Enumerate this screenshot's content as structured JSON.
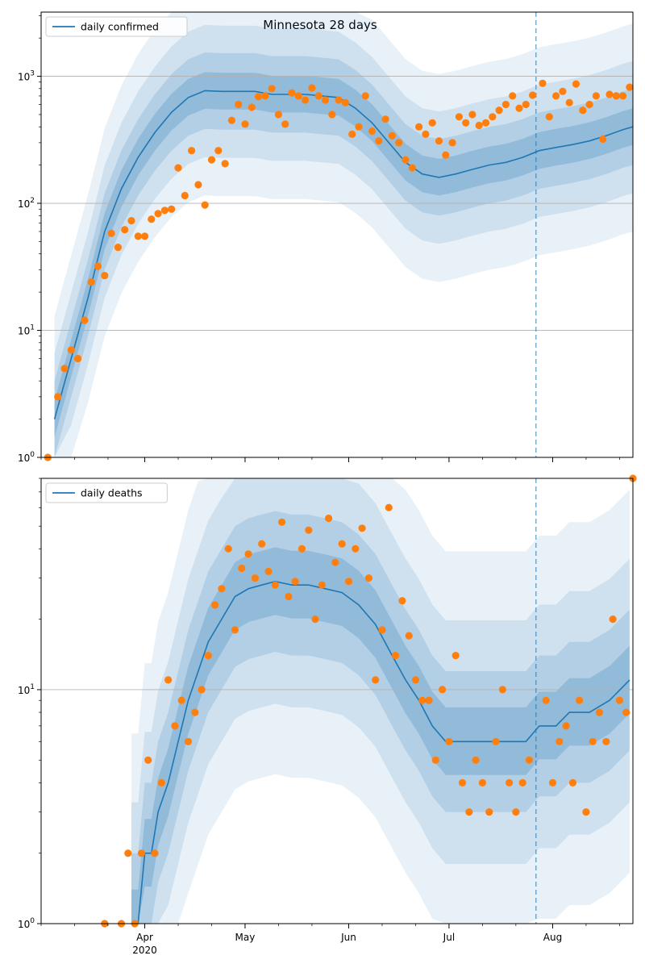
{
  "figure_title": "Minnesota 28 days",
  "chart_data": [
    {
      "type": "line",
      "title": "Minnesota 28 days",
      "xlabel": "",
      "ylabel": "",
      "yscale": "log",
      "ylim": [
        1,
        3200
      ],
      "xlim": [
        "2020-03-01",
        "2020-08-25"
      ],
      "x_ticks": [
        "Apr\n2020",
        "May",
        "Jun",
        "Jul",
        "Aug"
      ],
      "y_ticks": [
        "10^0",
        "10^1",
        "10^2",
        "10^3"
      ],
      "grid": "horizontal",
      "legend": "top-left",
      "legend_entries": [
        "daily confirmed"
      ],
      "forecast_start": "2020-07-27",
      "series": [
        {
          "name": "daily confirmed",
          "type": "line",
          "color": "#1f77b4",
          "x": [
            "2020-03-05",
            "2020-03-10",
            "2020-03-15",
            "2020-03-20",
            "2020-03-25",
            "2020-03-30",
            "2020-04-04",
            "2020-04-09",
            "2020-04-14",
            "2020-04-19",
            "2020-04-24",
            "2020-04-29",
            "2020-05-04",
            "2020-05-09",
            "2020-05-14",
            "2020-05-19",
            "2020-05-24",
            "2020-05-29",
            "2020-06-03",
            "2020-06-08",
            "2020-06-13",
            "2020-06-18",
            "2020-06-23",
            "2020-06-28",
            "2020-07-03",
            "2020-07-08",
            "2020-07-13",
            "2020-07-18",
            "2020-07-23",
            "2020-07-28",
            "2020-08-02",
            "2020-08-07",
            "2020-08-12",
            "2020-08-17",
            "2020-08-22",
            "2020-08-25"
          ],
          "y": [
            2,
            6,
            18,
            60,
            130,
            230,
            360,
            520,
            680,
            770,
            760,
            760,
            760,
            720,
            720,
            720,
            700,
            680,
            560,
            430,
            300,
            210,
            170,
            160,
            170,
            185,
            200,
            210,
            230,
            260,
            275,
            290,
            310,
            340,
            380,
            400
          ]
        },
        {
          "name": "",
          "type": "scatter",
          "color": "#ff7f0e",
          "x": [
            "2020-03-03",
            "2020-03-06",
            "2020-03-08",
            "2020-03-10",
            "2020-03-12",
            "2020-03-14",
            "2020-03-16",
            "2020-03-18",
            "2020-03-20",
            "2020-03-22",
            "2020-03-24",
            "2020-03-26",
            "2020-03-28",
            "2020-03-30",
            "2020-04-01",
            "2020-04-03",
            "2020-04-05",
            "2020-04-07",
            "2020-04-09",
            "2020-04-11",
            "2020-04-13",
            "2020-04-15",
            "2020-04-17",
            "2020-04-19",
            "2020-04-21",
            "2020-04-23",
            "2020-04-25",
            "2020-04-27",
            "2020-04-29",
            "2020-05-01",
            "2020-05-03",
            "2020-05-05",
            "2020-05-07",
            "2020-05-09",
            "2020-05-11",
            "2020-05-13",
            "2020-05-15",
            "2020-05-17",
            "2020-05-19",
            "2020-05-21",
            "2020-05-23",
            "2020-05-25",
            "2020-05-27",
            "2020-05-29",
            "2020-05-31",
            "2020-06-02",
            "2020-06-04",
            "2020-06-06",
            "2020-06-08",
            "2020-06-10",
            "2020-06-12",
            "2020-06-14",
            "2020-06-16",
            "2020-06-18",
            "2020-06-20",
            "2020-06-22",
            "2020-06-24",
            "2020-06-26",
            "2020-06-28",
            "2020-06-30",
            "2020-07-02",
            "2020-07-04",
            "2020-07-06",
            "2020-07-08",
            "2020-07-10",
            "2020-07-12",
            "2020-07-14",
            "2020-07-16",
            "2020-07-18",
            "2020-07-20",
            "2020-07-22",
            "2020-07-24",
            "2020-07-26",
            "2020-07-29",
            "2020-07-31",
            "2020-08-02",
            "2020-08-04",
            "2020-08-06",
            "2020-08-08",
            "2020-08-10",
            "2020-08-12",
            "2020-08-14",
            "2020-08-16",
            "2020-08-18",
            "2020-08-20",
            "2020-08-22",
            "2020-08-24"
          ],
          "y": [
            1,
            3,
            5,
            7,
            6,
            12,
            24,
            32,
            27,
            58,
            45,
            62,
            73,
            55,
            55,
            75,
            83,
            88,
            90,
            190,
            115,
            260,
            140,
            97,
            220,
            260,
            205,
            450,
            600,
            420,
            570,
            690,
            700,
            800,
            500,
            420,
            740,
            700,
            650,
            810,
            700,
            650,
            500,
            650,
            620,
            350,
            400,
            700,
            370,
            310,
            460,
            340,
            300,
            220,
            190,
            400,
            350,
            430,
            310,
            240,
            300,
            480,
            430,
            500,
            410,
            430,
            480,
            540,
            600,
            700,
            560,
            600,
            710,
            880,
            480,
            700,
            760,
            620,
            870,
            540,
            600,
            700,
            320,
            720,
            700,
            700,
            820
          ],
          "note_hidden": ""
        }
      ]
    },
    {
      "type": "line",
      "title": "",
      "xlabel": "",
      "ylabel": "",
      "yscale": "log",
      "ylim": [
        1,
        80
      ],
      "xlim": [
        "2020-03-01",
        "2020-08-25"
      ],
      "x_ticks": [
        "Apr\n2020",
        "May",
        "Jun",
        "Jul",
        "Aug"
      ],
      "y_ticks": [
        "10^0",
        "10^1"
      ],
      "grid": "horizontal",
      "legend": "top-left",
      "legend_entries": [
        "daily deaths"
      ],
      "forecast_start": "2020-07-27",
      "series": [
        {
          "name": "daily deaths",
          "type": "line",
          "color": "#1f77b4",
          "x": [
            "2020-03-28",
            "2020-03-30",
            "2020-04-01",
            "2020-04-03",
            "2020-04-05",
            "2020-04-08",
            "2020-04-11",
            "2020-04-14",
            "2020-04-17",
            "2020-04-20",
            "2020-04-24",
            "2020-04-28",
            "2020-05-02",
            "2020-05-06",
            "2020-05-10",
            "2020-05-15",
            "2020-05-20",
            "2020-05-25",
            "2020-05-30",
            "2020-06-04",
            "2020-06-09",
            "2020-06-14",
            "2020-06-18",
            "2020-06-22",
            "2020-06-26",
            "2020-06-30",
            "2020-07-02",
            "2020-07-06",
            "2020-07-12",
            "2020-07-18",
            "2020-07-24",
            "2020-07-28",
            "2020-08-02",
            "2020-08-06",
            "2020-08-12",
            "2020-08-18",
            "2020-08-24"
          ],
          "y": [
            1,
            1,
            2,
            2,
            3,
            4,
            6,
            9,
            12,
            16,
            20,
            25,
            27,
            28,
            29,
            28,
            28,
            27,
            26,
            23,
            19,
            14,
            11,
            9,
            7,
            6,
            6,
            6,
            6,
            6,
            6,
            7,
            7,
            8,
            8,
            9,
            11
          ]
        },
        {
          "name": "",
          "type": "scatter",
          "color": "#ff7f0e",
          "x": [
            "2020-03-20",
            "2020-03-25",
            "2020-03-27",
            "2020-03-29",
            "2020-03-31",
            "2020-04-02",
            "2020-04-04",
            "2020-04-06",
            "2020-04-08",
            "2020-04-10",
            "2020-04-12",
            "2020-04-14",
            "2020-04-16",
            "2020-04-18",
            "2020-04-20",
            "2020-04-22",
            "2020-04-24",
            "2020-04-26",
            "2020-04-28",
            "2020-04-30",
            "2020-05-02",
            "2020-05-04",
            "2020-05-06",
            "2020-05-08",
            "2020-05-10",
            "2020-05-12",
            "2020-05-14",
            "2020-05-16",
            "2020-05-18",
            "2020-05-20",
            "2020-05-22",
            "2020-05-24",
            "2020-05-26",
            "2020-05-28",
            "2020-05-30",
            "2020-06-01",
            "2020-06-03",
            "2020-06-05",
            "2020-06-07",
            "2020-06-09",
            "2020-06-11",
            "2020-06-13",
            "2020-06-15",
            "2020-06-17",
            "2020-06-19",
            "2020-06-21",
            "2020-06-23",
            "2020-06-25",
            "2020-06-27",
            "2020-06-29",
            "2020-07-01",
            "2020-07-03",
            "2020-07-05",
            "2020-07-07",
            "2020-07-09",
            "2020-07-11",
            "2020-07-13",
            "2020-07-15",
            "2020-07-17",
            "2020-07-19",
            "2020-07-21",
            "2020-07-23",
            "2020-07-25",
            "2020-07-30",
            "2020-08-01",
            "2020-08-03",
            "2020-08-05",
            "2020-08-07",
            "2020-08-09",
            "2020-08-11",
            "2020-08-13",
            "2020-08-15",
            "2020-08-17",
            "2020-08-19",
            "2020-08-21",
            "2020-08-23",
            "2020-08-25"
          ],
          "y": [
            1,
            1,
            2,
            1,
            2,
            5,
            2,
            4,
            11,
            7,
            9,
            6,
            8,
            10,
            14,
            23,
            27,
            40,
            18,
            33,
            38,
            30,
            42,
            32,
            28,
            52,
            25,
            29,
            40,
            48,
            20,
            28,
            54,
            35,
            42,
            29,
            40,
            49,
            30,
            11,
            18,
            60,
            14,
            24,
            17,
            11,
            9,
            9,
            5,
            10,
            6,
            14,
            4,
            3,
            5,
            4,
            3,
            6,
            10,
            4,
            3,
            4,
            5,
            9,
            4,
            6,
            7,
            4,
            9,
            3,
            6,
            8,
            6,
            20,
            9,
            8,
            80
          ]
        }
      ]
    }
  ]
}
